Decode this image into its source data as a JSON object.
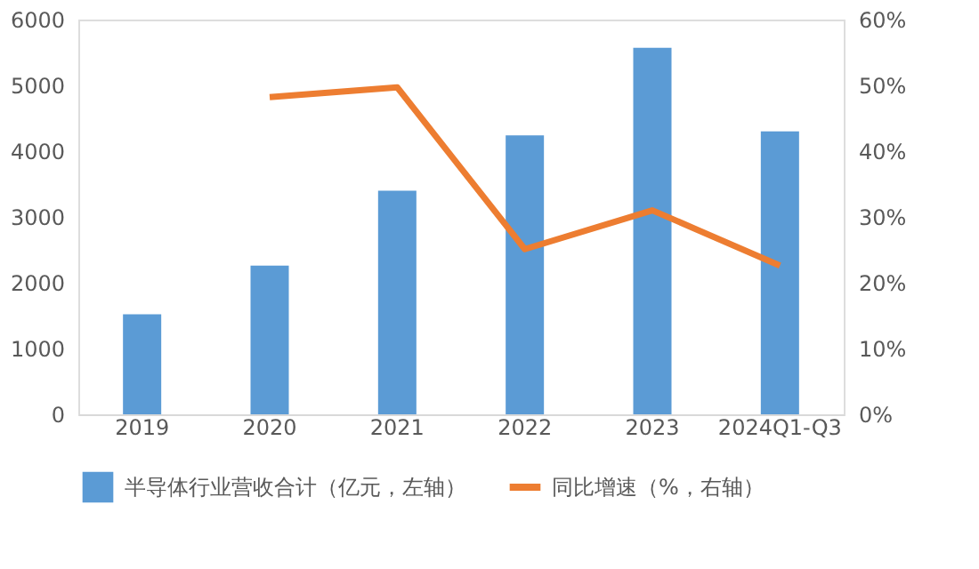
{
  "chart_data": {
    "type": "bar",
    "categories": [
      "2019",
      "2020",
      "2021",
      "2022",
      "2023",
      "2024Q1-Q3"
    ],
    "series": [
      {
        "name": "半导体行业营收合计（亿元，左轴）",
        "color": "#5b9bd5",
        "values": [
          1520,
          2260,
          3400,
          4240,
          5570,
          4300
        ]
      },
      {
        "name": "同比增速（%，右轴）",
        "type": "line",
        "axis": "y2",
        "color": "#ed7d31",
        "values": [
          null,
          48.2,
          49.7,
          25.1,
          31.0,
          22.6
        ]
      }
    ],
    "ylim": [
      0,
      6000
    ],
    "yticks": [
      0,
      1000,
      2000,
      3000,
      4000,
      5000,
      6000
    ],
    "y2lim": [
      0,
      60
    ],
    "y2ticks": [
      {
        "value": 0,
        "label": "0%"
      },
      {
        "value": 10,
        "label": "10%"
      },
      {
        "value": 20,
        "label": "20%"
      },
      {
        "value": 30,
        "label": "30%"
      },
      {
        "value": 40,
        "label": "40%"
      },
      {
        "value": 50,
        "label": "50%"
      },
      {
        "value": 60,
        "label": "60%"
      }
    ],
    "grid": false,
    "legend": "bottom",
    "marker": "none",
    "line_style": "solid"
  }
}
